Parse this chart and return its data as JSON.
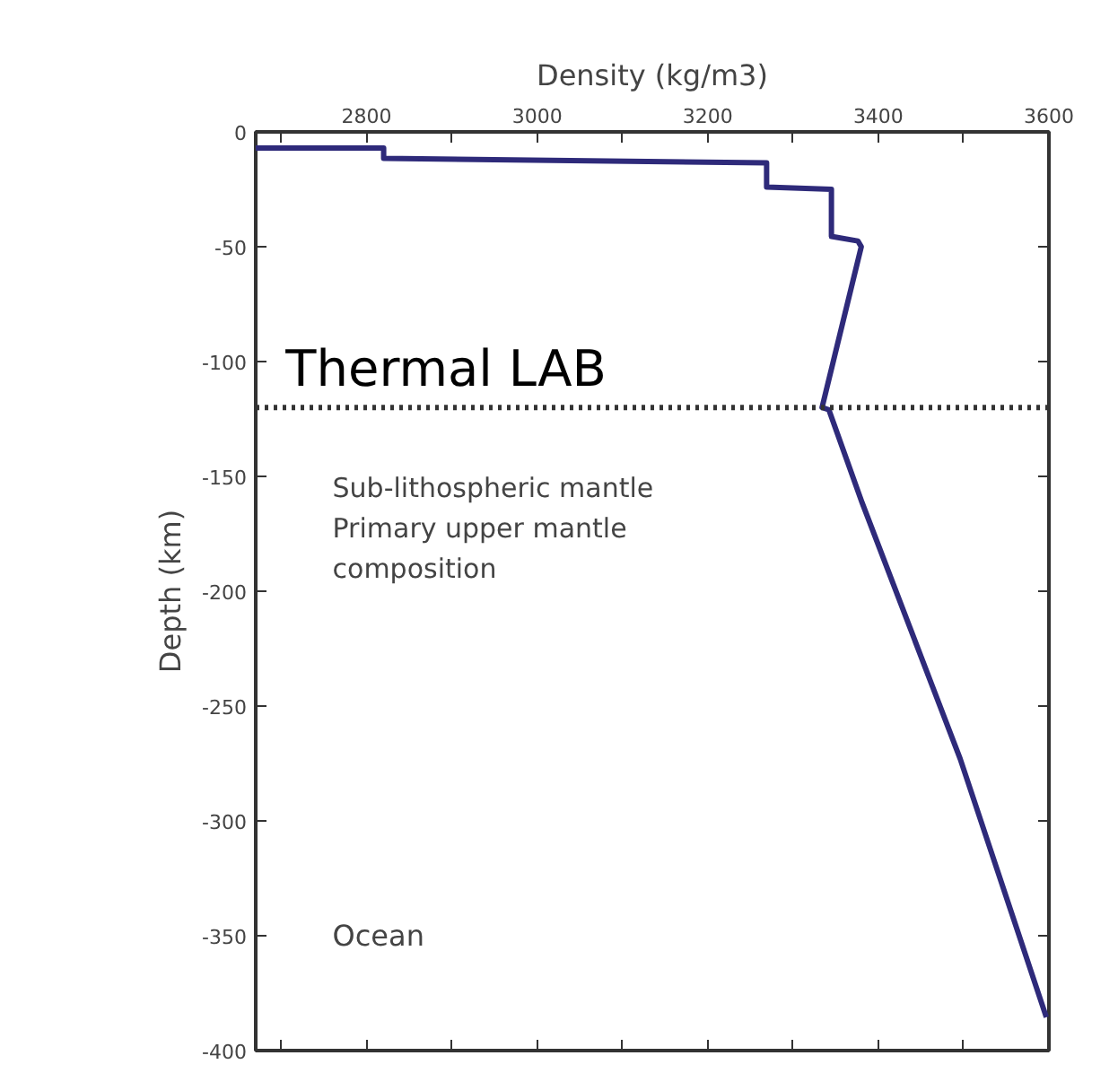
{
  "chart_data": {
    "type": "line",
    "xlabel": "Density (kg/m3)",
    "ylabel": "Depth (km)",
    "x": [
      2670,
      2820,
      2820,
      3269,
      3269,
      3345,
      3345,
      3376,
      3380,
      3334,
      3342,
      3381,
      3496,
      3597
    ],
    "series": [
      {
        "color": "#2e2a7a",
        "values": [
          -7,
          -7,
          -11.5,
          -13.5,
          -24,
          -25,
          -45.5,
          -47.5,
          -50,
          -120,
          -121,
          -161.5,
          -273,
          -385.5
        ]
      }
    ],
    "xlim": [
      2670,
      3600
    ],
    "ylim": [
      -400,
      0
    ],
    "xticks": [
      {
        "value": 2700,
        "label": null
      },
      2800,
      {
        "value": 2900,
        "label": null
      },
      3000,
      {
        "value": 3100,
        "label": null
      },
      3200,
      {
        "value": 3300,
        "label": null
      },
      3400,
      {
        "value": 3500,
        "label": null
      },
      3600
    ],
    "yticks": [
      0,
      -50,
      -100,
      -150,
      -200,
      -250,
      -300,
      -350,
      -400
    ],
    "ref_lines": [
      {
        "axis": "y",
        "value": -120,
        "line_style": "dotted",
        "color": "#333333"
      }
    ],
    "annotations": [
      "Thermal LAB",
      "Sub-lithospheric mantle\nPrimary upper mantle\ncomposition",
      "Ocean"
    ],
    "grid": false,
    "marker": "none",
    "line_style": "solid"
  }
}
